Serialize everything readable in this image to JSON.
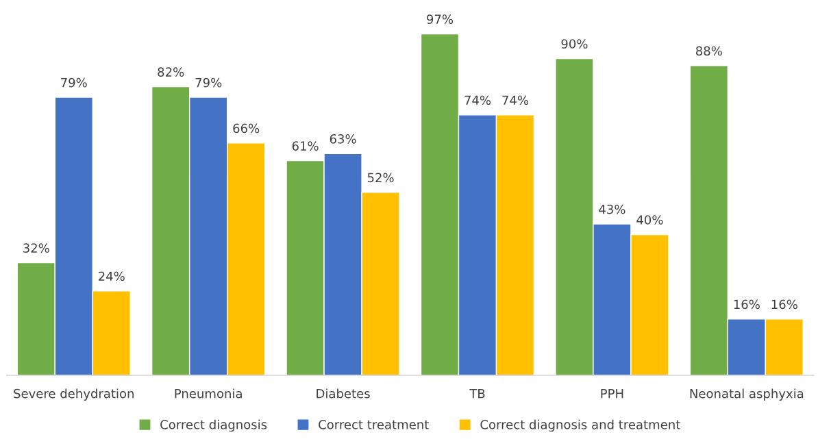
{
  "chart_data": {
    "type": "bar",
    "categories": [
      "Severe dehydration",
      "Pneumonia",
      "Diabetes",
      "TB",
      "PPH",
      "Neonatal asphyxia"
    ],
    "series": [
      {
        "name": "Correct diagnosis",
        "color": "#70ad47",
        "values": [
          32,
          82,
          61,
          97,
          90,
          88
        ],
        "value_labels": [
          "32%",
          "82%",
          "61%",
          "97%",
          "90%",
          "88%"
        ]
      },
      {
        "name": "Correct treatment",
        "color": "#4472c4",
        "values": [
          79,
          79,
          63,
          74,
          43,
          16
        ],
        "value_labels": [
          "79%",
          "79%",
          "63%",
          "74%",
          "43%",
          "16%"
        ]
      },
      {
        "name": "Correct diagnosis and treatment",
        "color": "#ffc000",
        "values": [
          24,
          66,
          52,
          74,
          40,
          16
        ],
        "value_labels": [
          "24%",
          "66%",
          "52%",
          "74%",
          "40%",
          "16%"
        ]
      }
    ],
    "legend": "bottom",
    "grid": false
  }
}
